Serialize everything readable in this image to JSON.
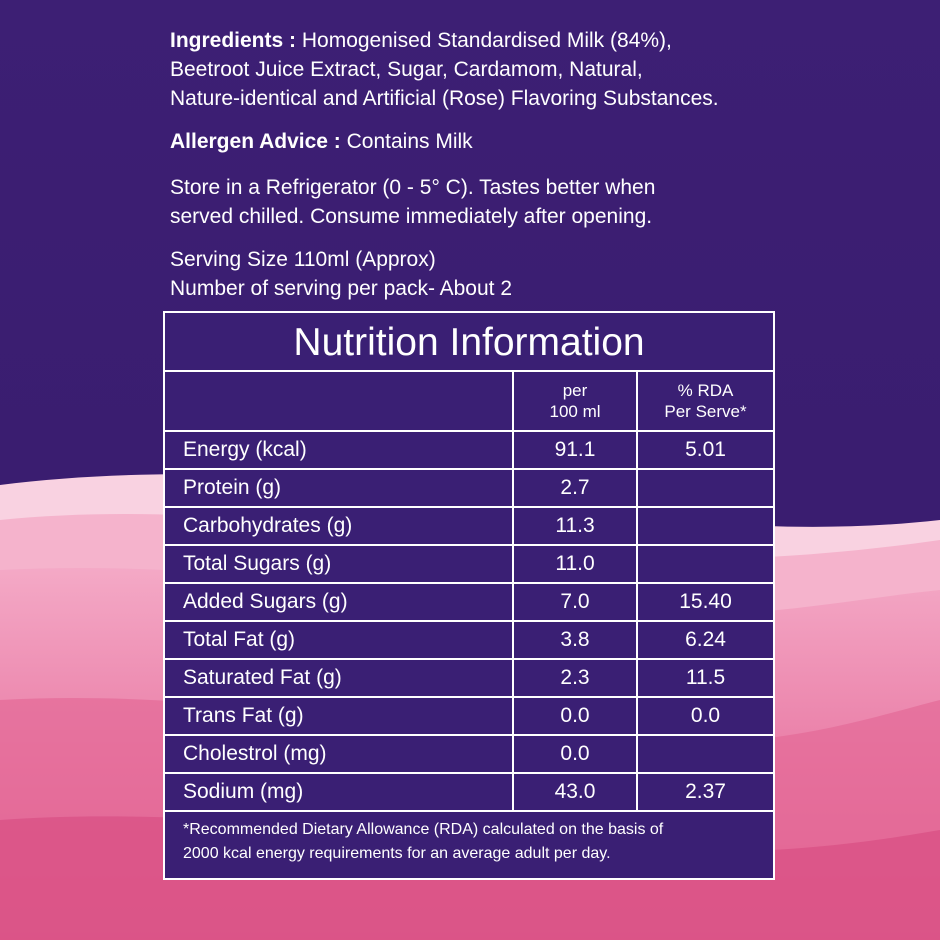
{
  "ingredients": {
    "label": "Ingredients :",
    "line1": "Homogenised Standardised Milk (84%),",
    "line2": "Beetroot Juice Extract, Sugar, Cardamom, Natural,",
    "line3": "Nature-identical and Artificial (Rose) Flavoring Substances."
  },
  "allergen": {
    "label": "Allergen Advice :",
    "text": "Contains Milk"
  },
  "storage": {
    "line1": "Store in a Refrigerator (0 - 5° C). Tastes better when",
    "line2": "served chilled. Consume immediately after opening."
  },
  "serving": {
    "line1": "Serving Size 110ml (Approx)",
    "line2": "Number of serving per pack- About 2"
  },
  "nutrition": {
    "title": "Nutrition Information",
    "col_per_line1": "per",
    "col_per_line2": "100 ml",
    "col_rda_line1": "% RDA",
    "col_rda_line2": "Per Serve*",
    "rows": [
      {
        "name": "Energy (kcal)",
        "per100": "91.1",
        "rda": "5.01"
      },
      {
        "name": "Protein (g)",
        "per100": "2.7",
        "rda": ""
      },
      {
        "name": "Carbohydrates (g)",
        "per100": "11.3",
        "rda": ""
      },
      {
        "name": "Total Sugars (g)",
        "per100": "11.0",
        "rda": ""
      },
      {
        "name": "Added Sugars (g)",
        "per100": "7.0",
        "rda": "15.40"
      },
      {
        "name": "Total Fat (g)",
        "per100": "3.8",
        "rda": "6.24"
      },
      {
        "name": "Saturated Fat (g)",
        "per100": "2.3",
        "rda": "11.5"
      },
      {
        "name": "Trans Fat (g)",
        "per100": "0.0",
        "rda": "0.0"
      },
      {
        "name": "Cholestrol (mg)",
        "per100": "0.0",
        "rda": ""
      },
      {
        "name": "Sodium (mg)",
        "per100": "43.0",
        "rda": "2.37"
      }
    ],
    "footnote_line1": "*Recommended Dietary Allowance (RDA) calculated on the basis of",
    "footnote_line2": "2000 kcal energy requirements for an average adult per day."
  },
  "colors": {
    "panel_bg": "#3a1f74",
    "page_bg": "#3b1e72",
    "wave_light": "#f8c6d9",
    "wave_mid": "#ef93b5",
    "wave_deep": "#e0628e"
  }
}
